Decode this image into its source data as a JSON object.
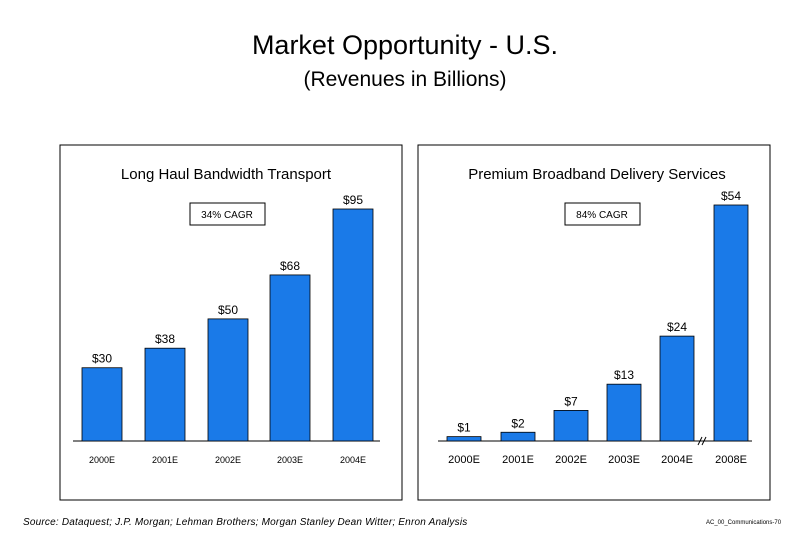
{
  "page": {
    "title": "Market Opportunity - U.S.",
    "subtitle": "(Revenues in Billions)",
    "source": "Source:  Dataquest; J.P. Morgan; Lehman Brothers; Morgan Stanley Dean Witter; Enron Analysis",
    "page_ref": "AC_00_Communications-70"
  },
  "colors": {
    "bar": "#1a7ae8",
    "frame": "#000000"
  },
  "chart_data": [
    {
      "type": "bar",
      "title": "Long Haul Bandwidth Transport",
      "annotation": "34% CAGR",
      "categories": [
        "2000E",
        "2001E",
        "2002E",
        "2003E",
        "2004E"
      ],
      "values": [
        30,
        38,
        50,
        68,
        95
      ],
      "value_labels": [
        "$30",
        "$38",
        "$50",
        "$68",
        "$95"
      ],
      "ylim": [
        0,
        100
      ],
      "xlabel": "",
      "ylabel": ""
    },
    {
      "type": "bar",
      "title": "Premium Broadband Delivery Services",
      "annotation": "84% CAGR",
      "categories": [
        "2000E",
        "2001E",
        "2002E",
        "2003E",
        "2004E",
        "2008E"
      ],
      "values": [
        1,
        2,
        7,
        13,
        24,
        54
      ],
      "value_labels": [
        "$1",
        "$2",
        "$7",
        "$13",
        "$24",
        "$54"
      ],
      "axis_break_before_last": true,
      "ylim": [
        0,
        56
      ],
      "xlabel": "",
      "ylabel": ""
    }
  ]
}
